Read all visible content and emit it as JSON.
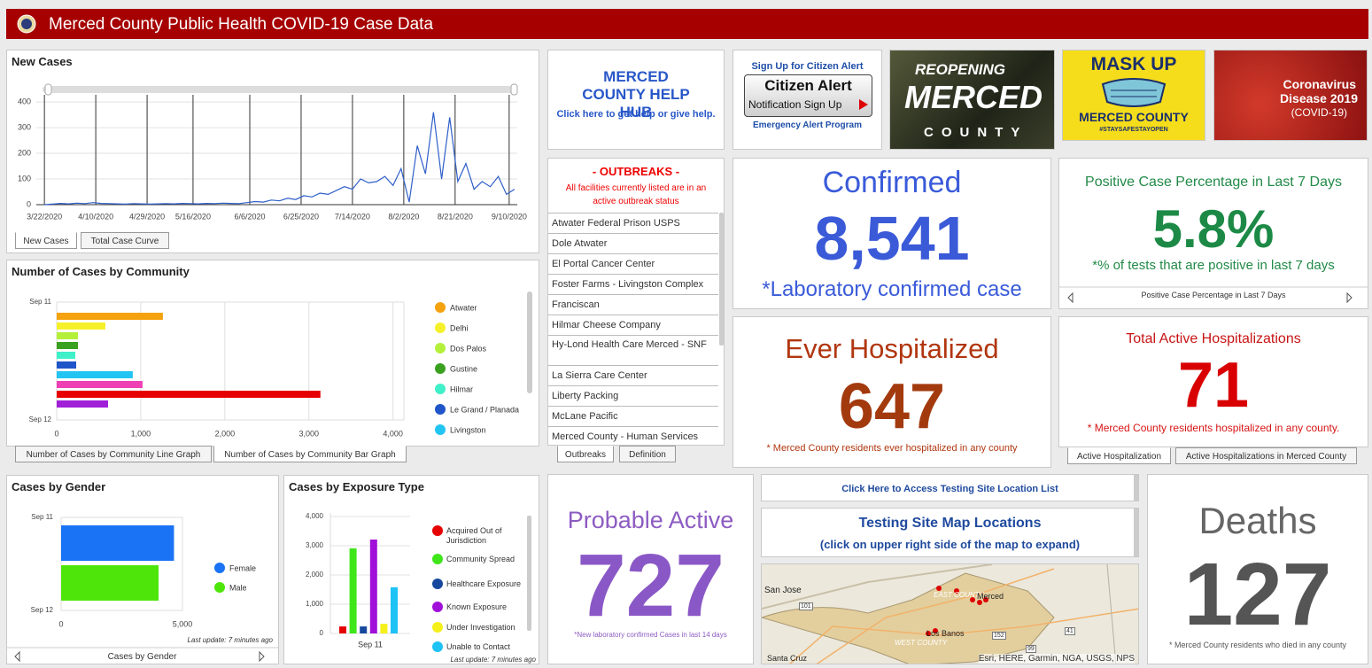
{
  "header": {
    "title": "Merced County Public Health COVID-19 Case Data"
  },
  "chart_data": [
    {
      "type": "line",
      "title": "New Cases",
      "x": [
        0,
        3,
        6,
        9,
        12,
        15,
        18,
        21,
        24,
        27,
        30,
        33,
        36,
        39,
        42,
        45,
        48,
        51,
        54,
        57,
        60,
        63,
        66,
        69,
        72,
        75,
        78,
        81,
        84,
        87,
        90,
        93,
        96,
        99,
        102,
        105,
        108,
        111,
        114,
        117,
        120,
        123,
        126,
        129,
        132,
        135,
        138,
        141,
        144,
        147,
        150,
        153,
        156,
        159,
        162,
        165,
        168,
        171,
        174
      ],
      "series": [
        {
          "color": "#2f5fc9",
          "values": [
            0,
            2,
            5,
            3,
            6,
            4,
            8,
            5,
            4,
            3,
            2,
            4,
            3,
            2,
            3,
            4,
            3,
            5,
            4,
            3,
            5,
            4,
            6,
            5,
            4,
            8,
            12,
            10,
            18,
            15,
            25,
            20,
            35,
            30,
            45,
            40,
            55,
            70,
            60,
            100,
            85,
            90,
            110,
            75,
            140,
            10,
            230,
            120,
            360,
            100,
            340,
            90,
            160,
            60,
            90,
            70,
            110,
            40,
            60
          ]
        }
      ],
      "xlim": [
        -3,
        175
      ],
      "ylim": [
        0,
        428
      ],
      "xticks": [
        {
          "value": 0,
          "label": "3/22/2020"
        },
        {
          "value": 19,
          "label": "4/10/2020"
        },
        {
          "value": 38,
          "label": "4/29/2020"
        },
        {
          "value": 55,
          "label": "5/16/2020"
        },
        {
          "value": 76,
          "label": "6/6/2020"
        },
        {
          "value": 95,
          "label": "6/25/2020"
        },
        {
          "value": 114,
          "label": "7/14/2020"
        },
        {
          "value": 133,
          "label": "8/2/2020"
        },
        {
          "value": 152,
          "label": "8/21/2020"
        },
        {
          "value": 172,
          "label": "9/10/2020"
        }
      ],
      "yticks": [
        0,
        100,
        200,
        300,
        400
      ],
      "grid": true,
      "tabs": [
        "New Cases",
        "Total Case Curve"
      ]
    },
    {
      "type": "bar",
      "orientation": "horizontal",
      "title": "Number of Cases by Community",
      "y_axis_labels": [
        "Sep 11",
        "Sep 12"
      ],
      "series": [
        {
          "name": "Atwater",
          "color": "#f5a20f",
          "values": [
            1263
          ]
        },
        {
          "name": "Delhi",
          "color": "#f6f02a",
          "values": [
            579
          ]
        },
        {
          "name": "Dos Palos",
          "color": "#b4f03a",
          "values": [
            253
          ]
        },
        {
          "name": "Gustine",
          "color": "#3aa020",
          "values": [
            253
          ]
        },
        {
          "name": "Hilmar",
          "color": "#3ff0c8",
          "values": [
            221
          ]
        },
        {
          "name": "Le Grand / Planada",
          "color": "#1f55c8",
          "values": [
            232
          ]
        },
        {
          "name": "Livingston",
          "color": "#22c4f2",
          "values": [
            905
          ]
        },
        {
          "name": null,
          "color": "#ee3fb4",
          "values": [
            1021
          ]
        },
        {
          "name": null,
          "color": "#e60000",
          "values": [
            3137
          ]
        },
        {
          "name": null,
          "color": "#a020d8",
          "values": [
            611
          ]
        }
      ],
      "xlim": [
        0,
        4130
      ],
      "xticks": [
        0,
        {
          "value": 1000,
          "label": "1,000"
        },
        {
          "value": 2000,
          "label": "2,000"
        },
        {
          "value": 3000,
          "label": "3,000"
        },
        {
          "value": 4000,
          "label": "4,000"
        }
      ],
      "grid": true,
      "tabs": [
        "Number of Cases by Community Line Graph",
        "Number of Cases by Community Bar Graph"
      ]
    },
    {
      "type": "bar",
      "orientation": "horizontal",
      "title": "Cases by Gender",
      "y_axis_labels": [
        "Sep 11",
        "Sep 12"
      ],
      "series": [
        {
          "name": "Female",
          "color": "#1a72f5",
          "values": [
            4650
          ]
        },
        {
          "name": "Male",
          "color": "#4ee60a",
          "values": [
            4015
          ]
        }
      ],
      "xlim": [
        0,
        5000
      ],
      "xticks": [
        0,
        {
          "value": 5000,
          "label": "5,000"
        }
      ],
      "grid": true,
      "note": "Last update: 7 minutes ago",
      "nav": "Cases by Gender"
    },
    {
      "type": "bar",
      "orientation": "vertical",
      "title": "Cases by Exposure Type",
      "categories": [
        "Sep 11"
      ],
      "series": [
        {
          "name": "Acquired Out of Jurisdiction",
          "color": "#e60000",
          "values": [
            240
          ]
        },
        {
          "name": "Community Spread",
          "color": "#3ee61a",
          "values": [
            2910
          ]
        },
        {
          "name": "Healthcare Exposure",
          "color": "#16489e",
          "values": [
            240
          ]
        },
        {
          "name": "Known Exposure",
          "color": "#a010d8",
          "values": [
            3210
          ]
        },
        {
          "name": "Under Investigation",
          "color": "#f5f01a",
          "values": [
            330
          ]
        },
        {
          "name": "Unable to Contact",
          "color": "#1ec2f5",
          "values": [
            1580
          ]
        }
      ],
      "ylim": [
        0,
        4120
      ],
      "yticks": [
        0,
        {
          "value": 1000,
          "label": "1,000"
        },
        {
          "value": 2000,
          "label": "2,000"
        },
        {
          "value": 3000,
          "label": "3,000"
        },
        {
          "value": 4000,
          "label": "4,000"
        }
      ],
      "grid": true,
      "note": "Last update: 7 minutes ago"
    }
  ],
  "help_hub": {
    "title": "MERCED COUNTY HELP HUB",
    "subtitle": "Click here to get help or give help."
  },
  "citizen_alert": {
    "heading": "Sign Up for Citizen Alert",
    "logo": "Citizen Alert",
    "button": "Notification Sign Up",
    "footer": "Emergency Alert Program"
  },
  "images": {
    "reopening": [
      "REOPENING",
      "MERCED",
      "COUNTY"
    ],
    "mask_up": [
      "MASK UP",
      "MERCED COUNTY",
      "#STAYSAFESTAYOPEN"
    ],
    "coronavirus": [
      "Coronavirus",
      "Disease 2019",
      "(COVID-19)"
    ]
  },
  "outbreaks": {
    "title": "- OUTBREAKS -",
    "note": "All facilities currently listed are in an active outbreak status",
    "items": [
      "Atwater Federal Prison USPS",
      "Dole Atwater",
      "El Portal Cancer Center",
      "Foster Farms - Livingston Complex",
      "Franciscan",
      "Hilmar Cheese Company",
      "Hy-Lond Health Care Merced - SNF",
      "La Sierra Care Center",
      "Liberty Packing",
      "McLane Pacific",
      "Merced County - Human Services"
    ],
    "tabs": [
      "Outbreaks",
      "Definition"
    ]
  },
  "confirmed": {
    "label": "Confirmed",
    "value": "8,541",
    "note": "*Laboratory confirmed case"
  },
  "positive_rate": {
    "title": "Positive Case Percentage in Last 7 Days",
    "value": "5.8%",
    "note": "*% of tests that are positive in last 7 days",
    "nav": "Positive Case Percentage in Last 7 Days"
  },
  "ever_hospitalized": {
    "label": "Ever Hospitalized",
    "value": "647",
    "note": "* Merced County residents ever hospitalized in any county"
  },
  "active_hospitalizations": {
    "title": "Total Active Hospitalizations",
    "value": "71",
    "note": "* Merced County residents hospitalized in any county.",
    "tabs": [
      "Active Hospitalization",
      "Active Hospitalizations in Merced County"
    ]
  },
  "probable_active": {
    "label": "Probable Active",
    "value": "727",
    "note": "*New laboratory confirmed Cases in last 14 days"
  },
  "testing": {
    "link": "Click Here to Access Testing Site Location List",
    "title": "Testing Site Map Locations",
    "subtitle": "(click on upper right side of the map to expand)"
  },
  "map": {
    "labels": [
      "San Jose",
      "EAST COUNTY",
      "Merced",
      "Los Banos",
      "WEST COUNTY",
      "Santa Cruz",
      "101",
      "152",
      "99",
      "41"
    ],
    "attribution": "Esri, HERE, Garmin, NGA, USGS, NPS"
  },
  "deaths": {
    "label": "Deaths",
    "value": "127",
    "note": "* Merced County residents who died in any county"
  }
}
